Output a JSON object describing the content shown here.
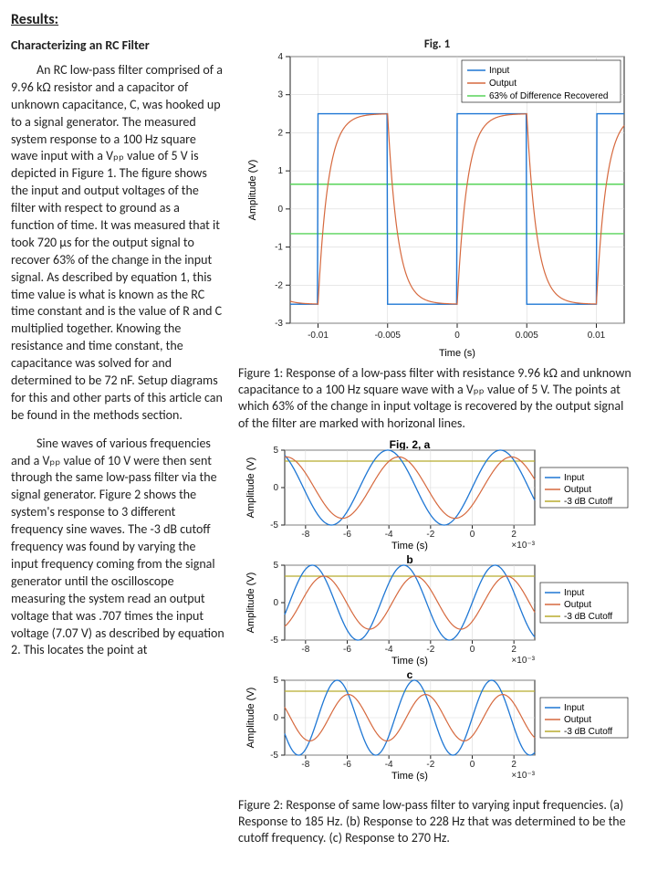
{
  "heading": "Results:",
  "subhead": "Characterizing an RC Filter",
  "para1": "An RC low-pass filter comprised of a 9.96 kΩ resistor and a capacitor of unknown capacitance, C, was hooked up to a signal generator. The measured system response to a 100 Hz square wave input with a Vₚₚ value of 5 V is depicted in Figure 1. The figure shows the input and output voltages of the filter with respect to ground as a function of time. It was measured that it took 720 μs for the output signal to recover 63% of the change in the input signal. As described by equation 1, this time value is what is known as the RC time constant and is the value of R and C multiplied together. Knowing the resistance and time constant, the capacitance was solved for and determined to be 72 nF. Setup diagrams for this and other parts of this article can be found in the methods section.",
  "para2": "Sine waves of various frequencies and a Vₚₚ value of 10 V were then sent through the same low-pass filter via the signal generator. Figure 2 shows the system's response to 3 different frequency sine waves. The -3 dB cutoff frequency was found by varying the input frequency coming from the signal generator until the oscilloscope measuring the system read an output voltage that was .707 times the input voltage (7.07 V) as described by equation 2. This locates the point at",
  "fig1": {
    "title": "Fig. 1",
    "xlabel": "Time (s)",
    "ylabel": "Amplitude (V)",
    "xlim": [
      -0.012,
      0.012
    ],
    "ylim": [
      -3,
      4
    ],
    "xticks": [
      -0.01,
      -0.005,
      0,
      0.005,
      0.01
    ],
    "yticks": [
      -3,
      -2,
      -1,
      0,
      1,
      2,
      3,
      4
    ],
    "input_color": "#1f77d4",
    "output_color": "#d6693e",
    "threshold_color": "#58d45a",
    "background": "#ffffff",
    "grid_color": "#d9d9d9",
    "legend": [
      "Input",
      "Output",
      "63% of Difference Recovered"
    ],
    "square_high": 2.5,
    "square_low": -2.5,
    "period": 0.01,
    "tau": 0.00072,
    "threshold_upper": 0.65,
    "threshold_lower": -0.65
  },
  "caption1": "Figure 1: Response of a low-pass filter with resistance 9.96 kΩ and unknown capacitance to a 100 Hz square wave with a Vₚₚ value of 5 V. The points at which 63% of the change in input voltage is recovered by the output signal of the filter are marked with horizonal lines.",
  "fig2": {
    "title_a": "Fig. 2, a",
    "title_b": "b",
    "title_c": "c",
    "xlabel": "Time (s)",
    "ylabel": "Amplitude (V)",
    "xlim": [
      -0.009,
      0.003
    ],
    "ylim": [
      -5,
      5
    ],
    "xticks": [
      -8,
      -6,
      -4,
      -2,
      0,
      2
    ],
    "xticks_exp": "×10⁻³",
    "yticks": [
      -5,
      0,
      5
    ],
    "input_color": "#1f77d4",
    "output_color": "#d6693e",
    "cutoff_color": "#b8ac2f",
    "background": "#ffffff",
    "grid_color": "#d9d9d9",
    "legend": [
      "Input",
      "Output",
      "-3 dB Cutoff"
    ],
    "panels": [
      {
        "freq_hz": 185,
        "input_amp": 5,
        "output_amp": 4.1,
        "phase_deg": -35
      },
      {
        "freq_hz": 228,
        "input_amp": 5,
        "output_amp": 3.54,
        "phase_deg": -45
      },
      {
        "freq_hz": 270,
        "input_amp": 5,
        "output_amp": 3.1,
        "phase_deg": -52
      }
    ],
    "cutoff_level": 3.54
  },
  "caption2": "Figure 2: Response of same low-pass filter to varying input frequencies. (a) Response to 185 Hz. (b) Response to 228 Hz that was determined to be the cutoff frequency. (c) Response to 270 Hz."
}
